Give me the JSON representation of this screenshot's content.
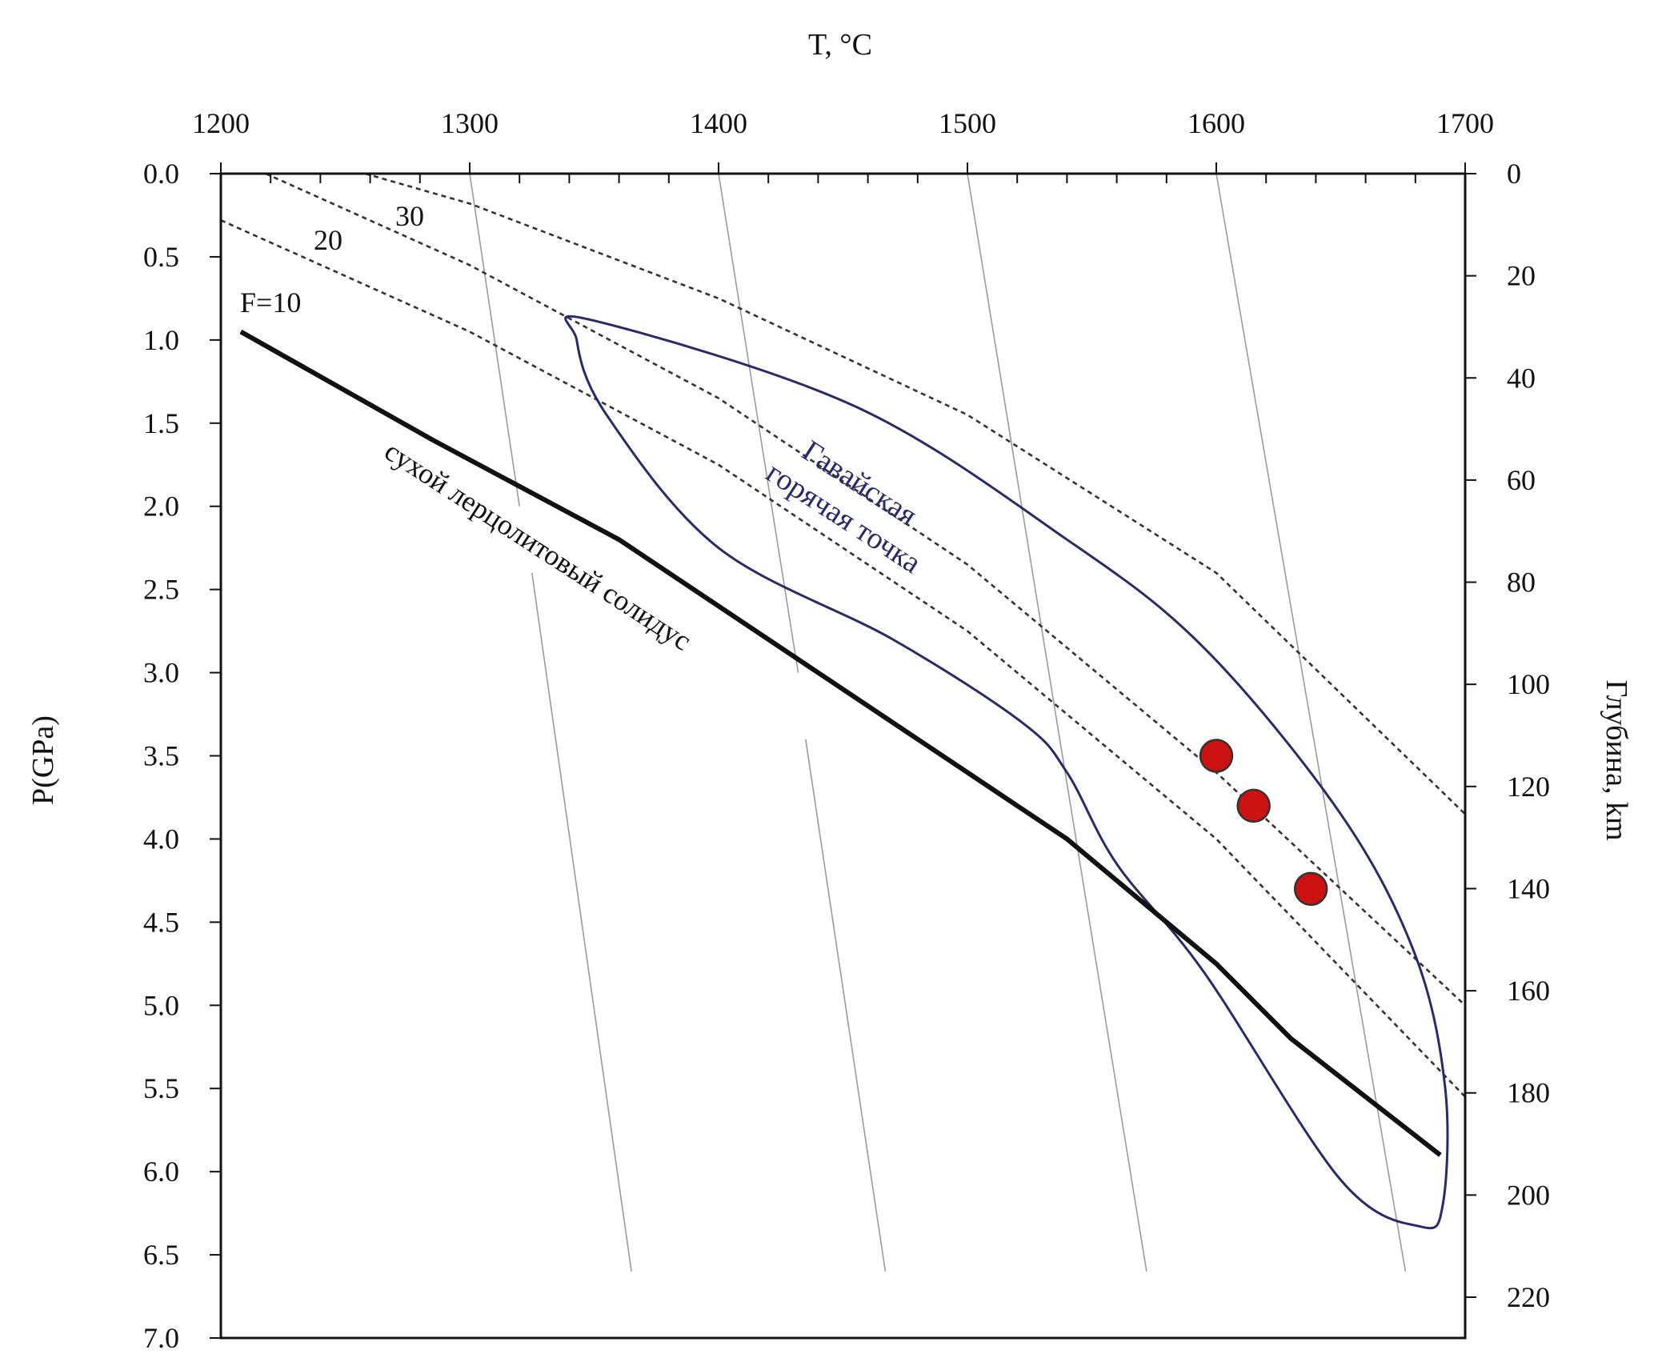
{
  "chart_data": {
    "type": "scatter",
    "title": "",
    "top_axis": {
      "label": "T, °C",
      "range": [
        1200,
        1700
      ],
      "ticks": [
        "1200",
        "1300",
        "1400",
        "1500",
        "1600",
        "1700"
      ]
    },
    "left_axis": {
      "label": "P(GPa)",
      "range": [
        0.0,
        7.0
      ],
      "inverted": true,
      "ticks": [
        "0.0",
        "0.5",
        "1.0",
        "1.5",
        "2.0",
        "2.5",
        "3.0",
        "3.5",
        "4.0",
        "4.5",
        "5.0",
        "5.5",
        "6.0",
        "6.5",
        "7.0"
      ]
    },
    "right_axis": {
      "label": "Глубина, km",
      "ticks": [
        "0",
        "20",
        "40",
        "60",
        "80",
        "100",
        "120",
        "140",
        "160",
        "180",
        "200",
        "220"
      ]
    },
    "solidus": {
      "label": "сухой лерцолитовый солидус",
      "color": "#111111",
      "points": [
        [
          1208,
          0.95
        ],
        [
          1285,
          1.6
        ],
        [
          1360,
          2.2
        ],
        [
          1420,
          2.8
        ],
        [
          1500,
          3.6
        ],
        [
          1540,
          4.0
        ],
        [
          1600,
          4.75
        ],
        [
          1630,
          5.2
        ],
        [
          1690,
          5.9
        ]
      ]
    },
    "melt_isopleths": [
      {
        "label": "F=10",
        "points": [
          [
            1208,
            0.95
          ],
          [
            1690,
            5.9
          ]
        ]
      },
      {
        "label": "20",
        "points": [
          [
            1200,
            0.28
          ],
          [
            1300,
            0.95
          ],
          [
            1400,
            1.75
          ],
          [
            1500,
            2.75
          ],
          [
            1600,
            4.0
          ],
          [
            1700,
            5.55
          ]
        ]
      },
      {
        "label": "30",
        "points": [
          [
            1218,
            0.0
          ],
          [
            1300,
            0.55
          ],
          [
            1400,
            1.35
          ],
          [
            1500,
            2.35
          ],
          [
            1600,
            3.6
          ],
          [
            1700,
            5.0
          ]
        ]
      },
      {
        "label": "",
        "points": [
          [
            1258,
            0.0
          ],
          [
            1300,
            0.18
          ],
          [
            1400,
            0.75
          ],
          [
            1500,
            1.45
          ],
          [
            1600,
            2.4
          ],
          [
            1700,
            3.85
          ]
        ]
      }
    ],
    "adiabats": [
      {
        "points": [
          [
            1300,
            0.0
          ],
          [
            1320,
            2.0
          ]
        ]
      },
      {
        "points": [
          [
            1325,
            2.4
          ],
          [
            1365,
            6.6
          ]
        ]
      },
      {
        "points": [
          [
            1400,
            0.0
          ],
          [
            1432,
            3.0
          ]
        ]
      },
      {
        "points": [
          [
            1435,
            3.4
          ],
          [
            1467,
            6.6
          ]
        ]
      },
      {
        "points": [
          [
            1500,
            0.0
          ],
          [
            1572,
            6.6
          ]
        ]
      },
      {
        "points": [
          [
            1600,
            0.0
          ],
          [
            1676,
            6.6
          ]
        ]
      }
    ],
    "region": {
      "label_line1": "Гавайская",
      "label_line2": "горячая точка",
      "color": "#2a2a66",
      "outline": [
        [
          1349,
          0.88
        ],
        [
          1455,
          1.4
        ],
        [
          1540,
          2.2
        ],
        [
          1595,
          2.85
        ],
        [
          1650,
          3.85
        ],
        [
          1680,
          4.7
        ],
        [
          1692,
          5.5
        ],
        [
          1691,
          6.2
        ],
        [
          1682,
          6.33
        ],
        [
          1650,
          6.05
        ],
        [
          1595,
          4.8
        ],
        [
          1560,
          4.15
        ],
        [
          1540,
          3.6
        ],
        [
          1522,
          3.3
        ],
        [
          1470,
          2.8
        ],
        [
          1400,
          2.25
        ],
        [
          1355,
          1.45
        ],
        [
          1343,
          1.0
        ],
        [
          1349,
          0.88
        ]
      ]
    },
    "data_points": {
      "color": "#cc1111",
      "points": [
        [
          1600,
          3.5
        ],
        [
          1615,
          3.8
        ],
        [
          1638,
          4.3
        ]
      ]
    }
  }
}
